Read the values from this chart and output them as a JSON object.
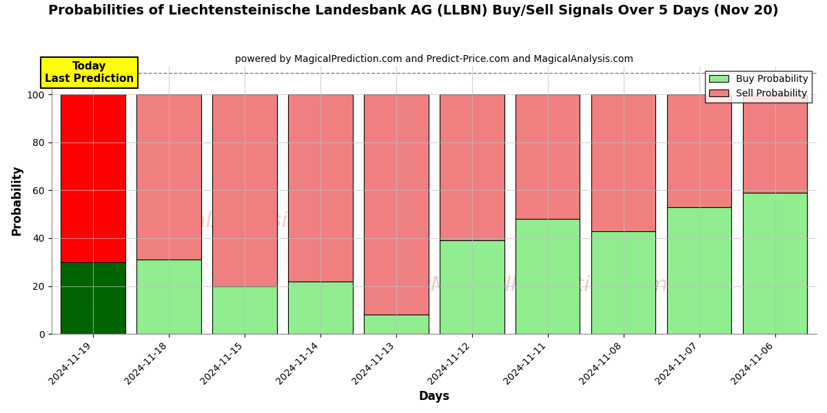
{
  "title": "Probabilities of Liechtensteinische Landesbank AG (LLBN) Buy/Sell Signals Over 5 Days (Nov 20)",
  "subtitle": "powered by MagicalPrediction.com and Predict-Price.com and MagicalAnalysis.com",
  "xlabel": "Days",
  "ylabel": "Probability",
  "categories": [
    "2024-11-19",
    "2024-11-18",
    "2024-11-15",
    "2024-11-14",
    "2024-11-13",
    "2024-11-12",
    "2024-11-11",
    "2024-11-08",
    "2024-11-07",
    "2024-11-06"
  ],
  "buy_values": [
    30,
    31,
    20,
    22,
    8,
    39,
    48,
    43,
    53,
    59
  ],
  "sell_values": [
    70,
    69,
    80,
    78,
    92,
    61,
    52,
    57,
    47,
    41
  ],
  "today_bar_index": 0,
  "buy_color_today": "#006400",
  "sell_color_today": "#FF0000",
  "buy_color_normal": "#90EE90",
  "sell_color_normal": "#F08080",
  "bar_edge_color": "#000000",
  "grid_color": "#C0C0C0",
  "watermark1": "calAnalysis.com",
  "watermark2": "MagicalPrediction.com",
  "ylim": [
    0,
    112
  ],
  "yticks": [
    0,
    20,
    40,
    60,
    80,
    100
  ],
  "dashed_line_y": 109,
  "legend_buy_label": "Buy Probability",
  "legend_sell_label": "Sell Probability",
  "today_annotation": "Today\nLast Prediction",
  "background_color": "#FFFFFF",
  "title_fontsize": 14,
  "subtitle_fontsize": 10,
  "axis_label_fontsize": 12,
  "tick_fontsize": 10,
  "bar_width": 0.85
}
